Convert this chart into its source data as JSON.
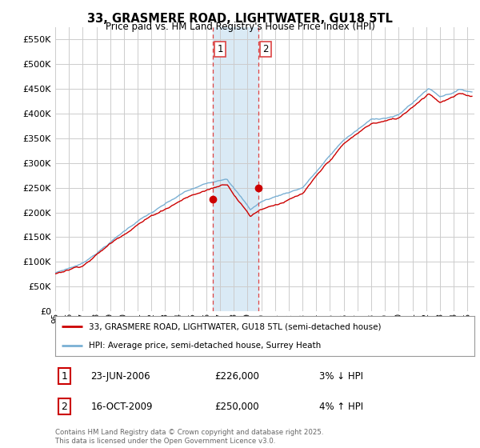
{
  "title_line1": "33, GRASMERE ROAD, LIGHTWATER, GU18 5TL",
  "title_line2": "Price paid vs. HM Land Registry's House Price Index (HPI)",
  "ylim": [
    0,
    575000
  ],
  "yticks": [
    0,
    50000,
    100000,
    150000,
    200000,
    250000,
    300000,
    350000,
    400000,
    450000,
    500000,
    550000
  ],
  "ytick_labels": [
    "£0",
    "£50K",
    "£100K",
    "£150K",
    "£200K",
    "£250K",
    "£300K",
    "£350K",
    "£400K",
    "£450K",
    "£500K",
    "£550K"
  ],
  "line1_color": "#cc0000",
  "line2_color": "#7ab0d4",
  "grid_color": "#cccccc",
  "bg_color": "#ffffff",
  "highlight_bg_color": "#daeaf5",
  "vline1_x": 2006.48,
  "vline2_x": 2009.79,
  "vline_color": "#dd4444",
  "sale1_year": 2006.48,
  "sale1_price": 226000,
  "sale2_year": 2009.79,
  "sale2_price": 250000,
  "legend_line1": "33, GRASMERE ROAD, LIGHTWATER, GU18 5TL (semi-detached house)",
  "legend_line2": "HPI: Average price, semi-detached house, Surrey Heath",
  "annotation1_date": "23-JUN-2006",
  "annotation1_price": "£226,000",
  "annotation1_hpi": "3% ↓ HPI",
  "annotation2_date": "16-OCT-2009",
  "annotation2_price": "£250,000",
  "annotation2_hpi": "4% ↑ HPI",
  "footer": "Contains HM Land Registry data © Crown copyright and database right 2025.\nThis data is licensed under the Open Government Licence v3.0.",
  "xmin": 1995.0,
  "xmax": 2025.5
}
